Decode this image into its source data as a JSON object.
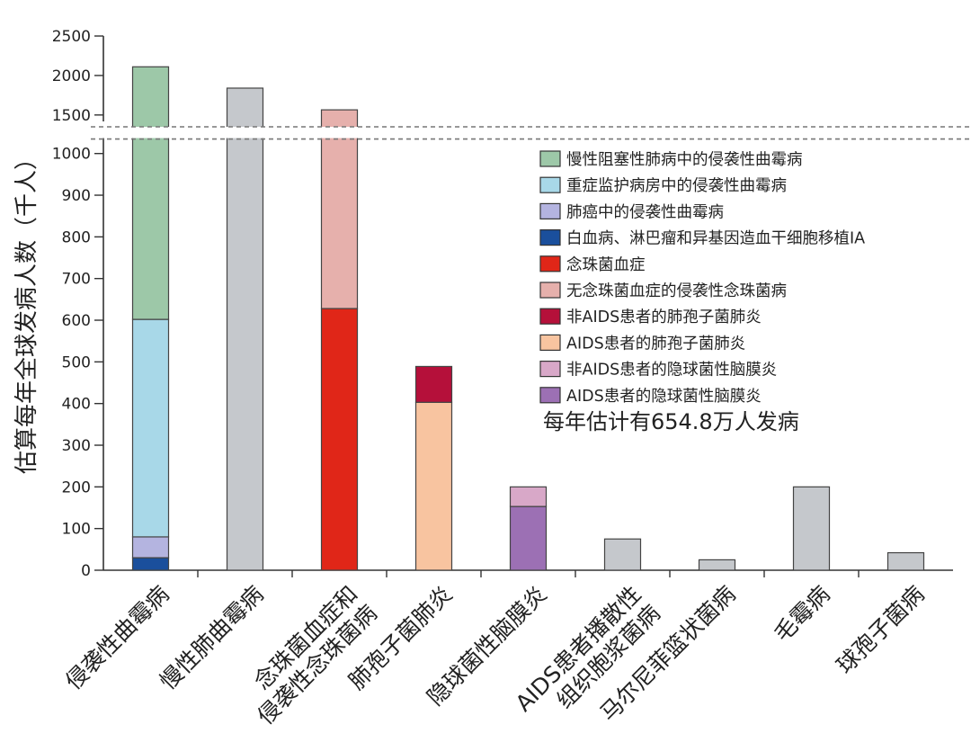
{
  "chart_data": {
    "type": "bar",
    "stacked": true,
    "axis_break": {
      "from": 1050,
      "to": 1350
    },
    "ylabel": "估算每年全球发病人数（千人）",
    "y_ticks": [
      0,
      100,
      200,
      300,
      400,
      500,
      600,
      700,
      800,
      900,
      1000,
      1500,
      2000,
      2500
    ],
    "ylim": [
      0,
      2500
    ],
    "categories": [
      {
        "label": "侵袭性曲霉病",
        "label_lines": [
          "侵袭性曲霉病"
        ]
      },
      {
        "label": "慢性肺曲霉病",
        "label_lines": [
          "慢性肺曲霉病"
        ]
      },
      {
        "label": "念珠菌血症和侵袭性念珠菌病",
        "label_lines": [
          "念珠菌血症和",
          "侵袭性念珠菌病"
        ]
      },
      {
        "label": "肺孢子菌肺炎",
        "label_lines": [
          "肺孢子菌肺炎"
        ]
      },
      {
        "label": "隐球菌性脑膜炎",
        "label_lines": [
          "隐球菌性脑膜炎"
        ]
      },
      {
        "label": "AIDS患者播散性组织胞浆菌病",
        "label_lines": [
          "AIDS患者播散性",
          "组织胞浆菌病"
        ]
      },
      {
        "label": "马尔尼菲篮状菌病",
        "label_lines": [
          "马尔尼菲篮状菌病"
        ]
      },
      {
        "label": "毛霉病",
        "label_lines": [
          "毛霉病"
        ]
      },
      {
        "label": "球孢子菌病",
        "label_lines": [
          "球孢子菌病"
        ]
      }
    ],
    "legend": [
      {
        "name": "慢性阻塞性肺病中的侵袭性曲霉病",
        "color": "#9dc8a8"
      },
      {
        "name": "重症监护病房中的侵袭性曲霉病",
        "color": "#a8d8e8"
      },
      {
        "name": "肺癌中的侵袭性曲霉病",
        "color": "#b4b4e0"
      },
      {
        "name": "白血病、淋巴瘤和异基因造血干细胞移植IA",
        "color": "#1a4f9c"
      },
      {
        "name": "念珠菌血症",
        "color": "#e02618"
      },
      {
        "name": "无念珠菌血症的侵袭性念珠菌病",
        "color": "#e6b0ac"
      },
      {
        "name": "非AIDS患者的肺孢子菌肺炎",
        "color": "#b5103a"
      },
      {
        "name": "AIDS患者的肺孢子菌肺炎",
        "color": "#f8c4a0"
      },
      {
        "name": "非AIDS患者的隐球菌性脑膜炎",
        "color": "#d8a8c8"
      },
      {
        "name": "AIDS患者的隐球菌性脑膜炎",
        "color": "#9c70b4"
      }
    ],
    "legend_position": "right",
    "gray_color": "#c5c8cc",
    "bars": [
      {
        "category": 0,
        "segments": [
          {
            "series": "白血病、淋巴瘤和异基因造血干细胞移植IA",
            "value": 30
          },
          {
            "series": "肺癌中的侵袭性曲霉病",
            "value": 50
          },
          {
            "series": "重症监护病房中的侵袭性曲霉病",
            "value": 522
          },
          {
            "series": "慢性阻塞性肺病中的侵袭性曲霉病",
            "value": 1508
          }
        ]
      },
      {
        "category": 1,
        "segments": [
          {
            "series": "",
            "value": 1840
          }
        ]
      },
      {
        "category": 2,
        "segments": [
          {
            "series": "念珠菌血症",
            "value": 628
          },
          {
            "series": "无念珠菌血症的侵袭性念珠菌病",
            "value": 937
          }
        ]
      },
      {
        "category": 3,
        "segments": [
          {
            "series": "AIDS患者的肺孢子菌肺炎",
            "value": 403
          },
          {
            "series": "非AIDS患者的肺孢子菌肺炎",
            "value": 86
          }
        ]
      },
      {
        "category": 4,
        "segments": [
          {
            "series": "AIDS患者的隐球菌性脑膜炎",
            "value": 153
          },
          {
            "series": "非AIDS患者的隐球菌性脑膜炎",
            "value": 47
          }
        ]
      },
      {
        "category": 5,
        "segments": [
          {
            "series": "",
            "value": 75
          }
        ]
      },
      {
        "category": 6,
        "segments": [
          {
            "series": "",
            "value": 25
          }
        ]
      },
      {
        "category": 7,
        "segments": [
          {
            "series": "",
            "value": 200
          }
        ]
      },
      {
        "category": 8,
        "segments": [
          {
            "series": "",
            "value": 42
          }
        ]
      }
    ],
    "annotation": "每年估计有654.8万人发病"
  }
}
